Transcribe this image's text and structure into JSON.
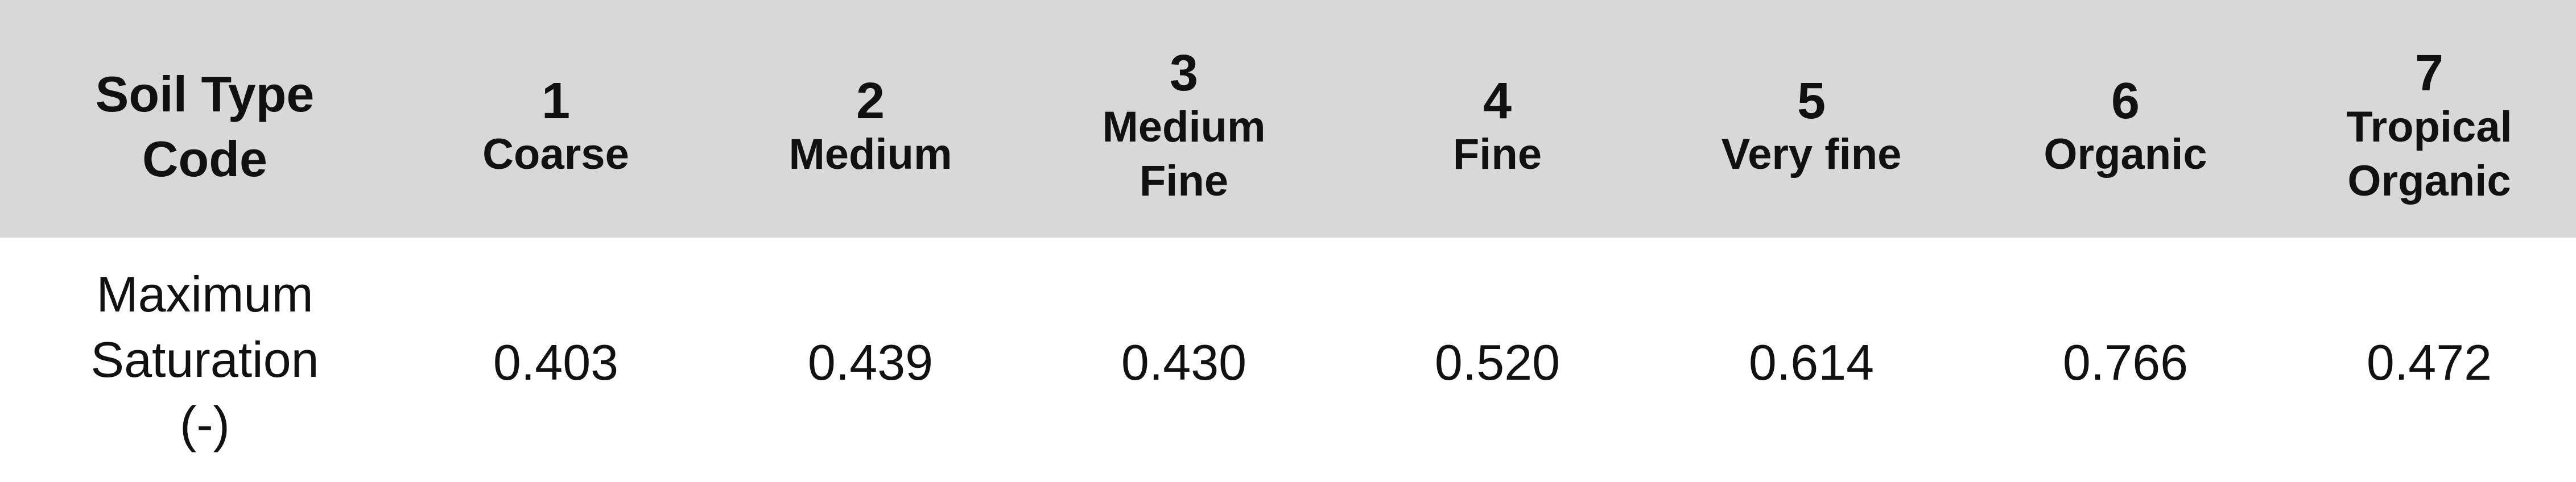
{
  "header": {
    "first_col": [
      "Soil Type",
      "Code"
    ],
    "columns": [
      {
        "num": "1",
        "label": [
          "Coarse"
        ]
      },
      {
        "num": "2",
        "label": [
          "Medium"
        ]
      },
      {
        "num": "3",
        "label": [
          "Medium",
          "Fine"
        ]
      },
      {
        "num": "4",
        "label": [
          "Fine"
        ]
      },
      {
        "num": "5",
        "label": [
          "Very fine"
        ]
      },
      {
        "num": "6",
        "label": [
          "Organic"
        ]
      },
      {
        "num": "7",
        "label": [
          "Tropical",
          "Organic"
        ]
      }
    ]
  },
  "rows": [
    {
      "label": [
        "Maximum",
        "Saturation",
        "(-)"
      ],
      "values": [
        "0.403",
        "0.439",
        "0.430",
        "0.520",
        "0.614",
        "0.766",
        "0.472"
      ]
    }
  ],
  "colors": {
    "header_bg": "#d8d8d8",
    "body_bg": "#ffffff",
    "text": "#111111"
  }
}
